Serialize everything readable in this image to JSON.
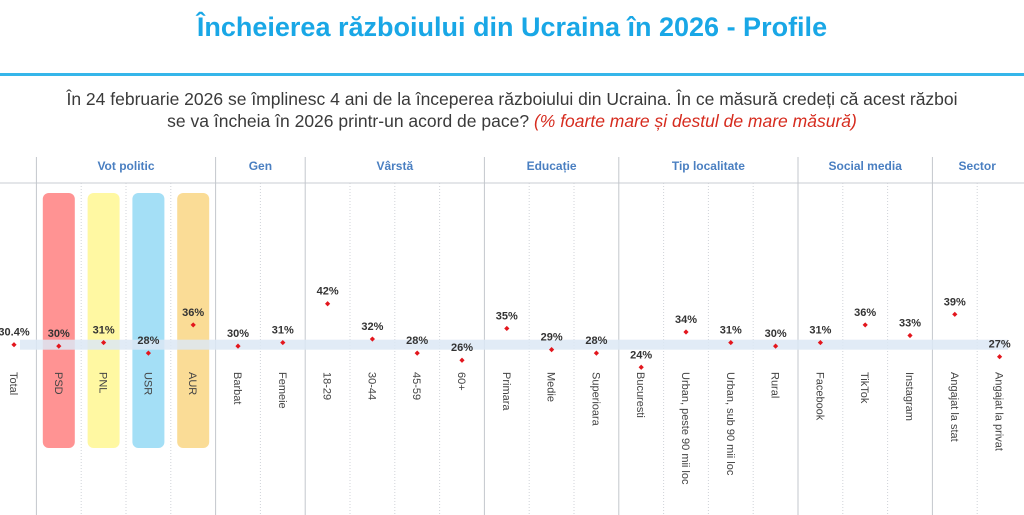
{
  "header": {
    "title": "Încheierea războiului din Ucraina în 2026 - Profile",
    "question": "În 24 februarie 2026 se împlinesc 4 ani de la începerea războiului din Ucraina. În ce măsură credeți că acest război se va încheia în 2026 printr-un acord de pace?",
    "note": "(% foarte mare și destul de mare măsură)"
  },
  "colors": {
    "title": "#19a7e6",
    "group_label": "#4a7fc1",
    "marker": "#e3161d",
    "band": "#dce8f5",
    "PSD": "#ff8a8a",
    "PNL": "#fff79a",
    "USR": "#9cdcf5",
    "AUR": "#fad98d"
  },
  "chart_data": {
    "type": "scatter",
    "title": "Încheierea războiului din Ucraina în 2026 - Profile",
    "unit": "%",
    "ylim": [
      0,
      100
    ],
    "groups": [
      {
        "name": "",
        "items": [
          {
            "label": "Total",
            "value": 30.4,
            "display": "30.4%"
          }
        ]
      },
      {
        "name": "Vot politic",
        "items": [
          {
            "label": "PSD",
            "value": 30,
            "display": "30%",
            "highlight": "PSD"
          },
          {
            "label": "PNL",
            "value": 31,
            "display": "31%",
            "highlight": "PNL"
          },
          {
            "label": "USR",
            "value": 28,
            "display": "28%",
            "highlight": "USR"
          },
          {
            "label": "AUR",
            "value": 36,
            "display": "36%",
            "highlight": "AUR"
          }
        ]
      },
      {
        "name": "Gen",
        "items": [
          {
            "label": "Barbat",
            "value": 30,
            "display": "30%"
          },
          {
            "label": "Femeie",
            "value": 31,
            "display": "31%"
          }
        ]
      },
      {
        "name": "Vârstă",
        "items": [
          {
            "label": "18-29",
            "value": 42,
            "display": "42%"
          },
          {
            "label": "30-44",
            "value": 32,
            "display": "32%"
          },
          {
            "label": "45-59",
            "value": 28,
            "display": "28%"
          },
          {
            "label": "60+",
            "value": 26,
            "display": "26%"
          }
        ]
      },
      {
        "name": "Educație",
        "items": [
          {
            "label": "Primara",
            "value": 35,
            "display": "35%"
          },
          {
            "label": "Medie",
            "value": 29,
            "display": "29%"
          },
          {
            "label": "Superioara",
            "value": 28,
            "display": "28%"
          }
        ]
      },
      {
        "name": "Tip localitate",
        "items": [
          {
            "label": "Bucuresti",
            "value": 24,
            "display": "24%"
          },
          {
            "label": "Urban, peste 90 mii loc",
            "value": 34,
            "display": "34%"
          },
          {
            "label": "Urban, sub 90 mii loc",
            "value": 31,
            "display": "31%"
          },
          {
            "label": "Rural",
            "value": 30,
            "display": "30%"
          }
        ]
      },
      {
        "name": "Social media",
        "items": [
          {
            "label": "Facebook",
            "value": 31,
            "display": "31%"
          },
          {
            "label": "TikTok",
            "value": 36,
            "display": "36%"
          },
          {
            "label": "Instagram",
            "value": 33,
            "display": "33%"
          }
        ]
      },
      {
        "name": "Sector",
        "items": [
          {
            "label": "Angajat la stat",
            "value": 39,
            "display": "39%"
          },
          {
            "label": "Angajat la privat",
            "value": 27,
            "display": "27%"
          }
        ]
      }
    ],
    "reference_band": 30.4
  }
}
